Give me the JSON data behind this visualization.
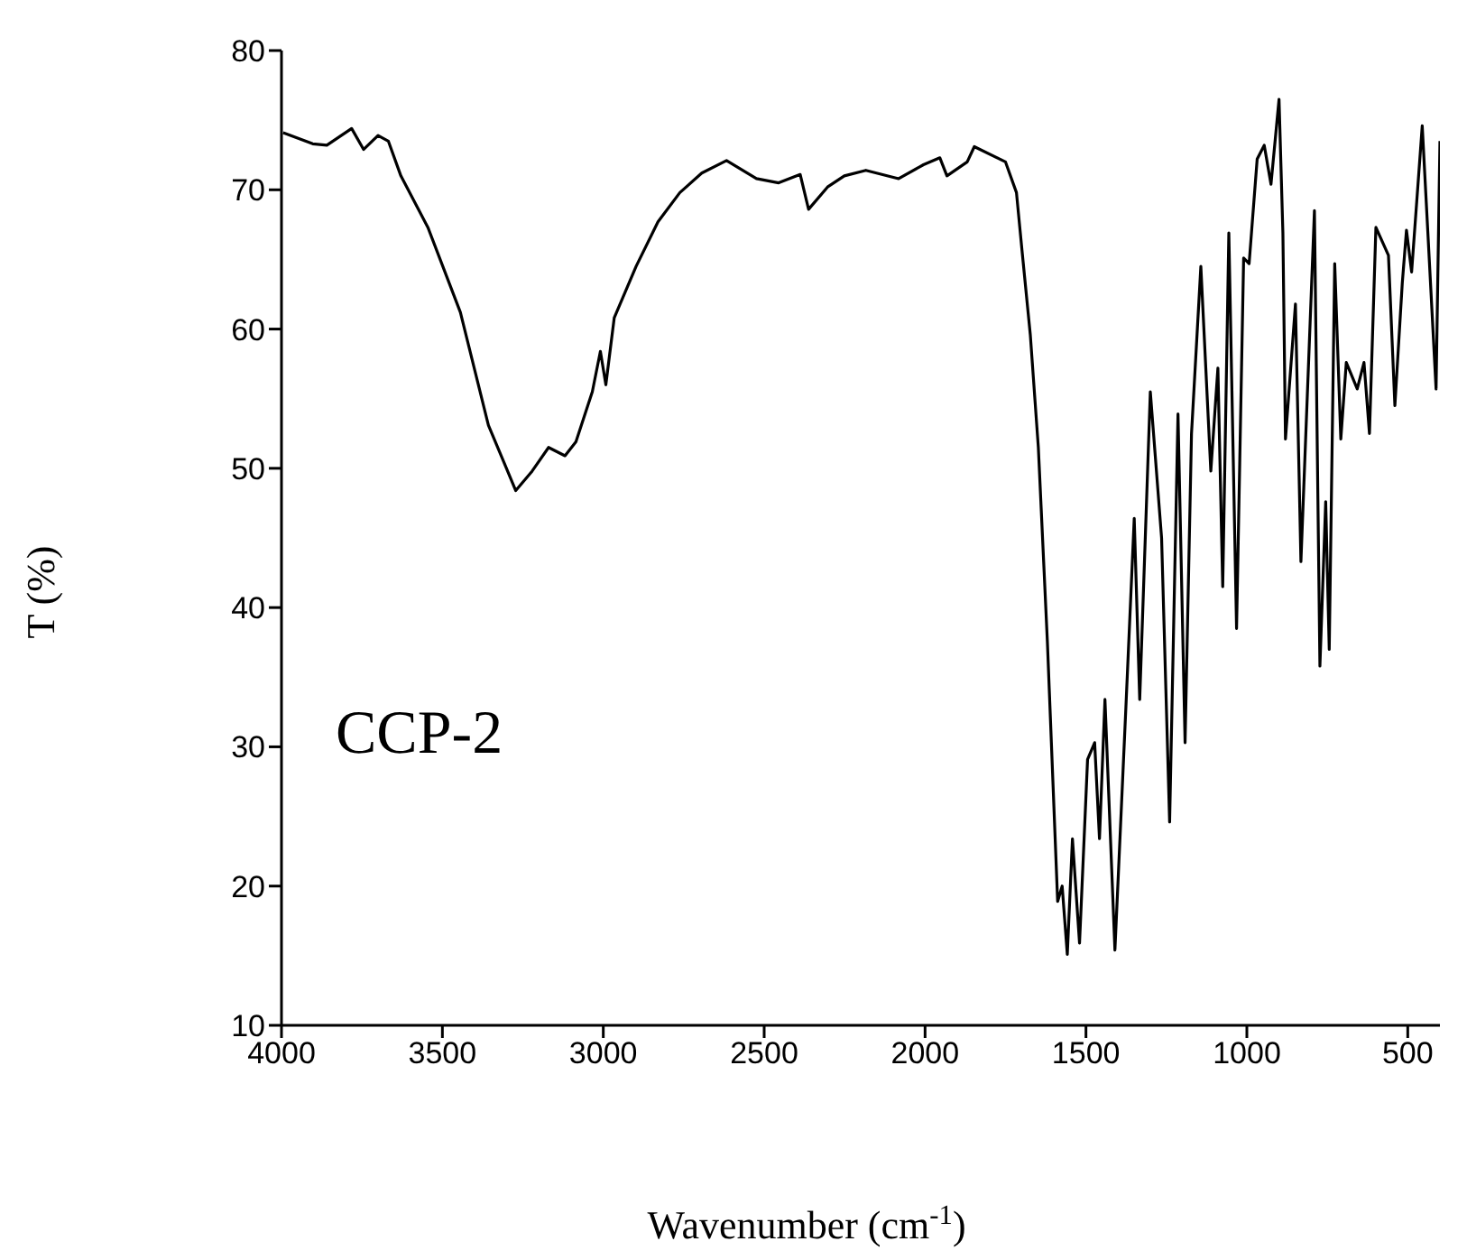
{
  "chart_data": {
    "type": "line",
    "xlabel": "Wavenumber (cm$^{-1}$)",
    "ylabel": "T (%)",
    "annotations": [
      "CCP-2"
    ],
    "xlim": [
      4000,
      400
    ],
    "xticks": [
      4000,
      3500,
      3000,
      2500,
      2000,
      1500,
      1000,
      500
    ],
    "ylim": [
      10,
      80
    ],
    "yticks": [
      10,
      20,
      30,
      40,
      50,
      60,
      70,
      80
    ],
    "marker": "none",
    "line_style": "solid",
    "series": [
      {
        "color": "#000000",
        "x": [
          3995,
          3903,
          3859,
          3782,
          3745,
          3700,
          3668,
          3629,
          3545,
          3444,
          3357,
          3272,
          3221,
          3170,
          3119,
          3085,
          3034,
          3009,
          2992,
          2966,
          2898,
          2830,
          2762,
          2694,
          2617,
          2524,
          2455,
          2388,
          2362,
          2303,
          2251,
          2184,
          2082,
          2005,
          1954,
          1932,
          1869,
          1847,
          1750,
          1716,
          1699,
          1673,
          1648,
          1620,
          1588,
          1574,
          1558,
          1542,
          1520,
          1495,
          1473,
          1458,
          1441,
          1410,
          1376,
          1350,
          1333,
          1300,
          1265,
          1240,
          1214,
          1192,
          1172,
          1143,
          1112,
          1090,
          1075,
          1056,
          1032,
          1010,
          993,
          968,
          946,
          925,
          900,
          888,
          880,
          849,
          832,
          790,
          773,
          755,
          744,
          727,
          708,
          691,
          657,
          636,
          619,
          599,
          560,
          540,
          517,
          504,
          488,
          455,
          412,
          400
        ],
        "values": [
          74.1,
          73.3,
          73.2,
          74.4,
          72.9,
          73.9,
          73.5,
          71.0,
          67.3,
          61.2,
          53.1,
          48.4,
          49.8,
          51.5,
          50.9,
          51.9,
          55.5,
          58.4,
          56.0,
          60.8,
          64.5,
          67.7,
          69.8,
          71.2,
          72.1,
          70.8,
          70.5,
          71.1,
          68.6,
          70.2,
          71.0,
          71.4,
          70.8,
          71.8,
          72.3,
          71.0,
          72.0,
          73.1,
          72.0,
          69.8,
          65.7,
          59.6,
          51.5,
          37.6,
          18.9,
          20.0,
          15.1,
          23.4,
          15.9,
          29.1,
          30.3,
          23.4,
          33.4,
          15.4,
          32.8,
          46.4,
          33.4,
          55.5,
          45.0,
          24.6,
          53.9,
          30.3,
          52.5,
          64.5,
          49.8,
          57.2,
          41.5,
          66.9,
          38.5,
          65.1,
          64.7,
          72.2,
          73.2,
          70.4,
          76.5,
          66.9,
          52.1,
          61.8,
          43.3,
          68.5,
          35.8,
          47.6,
          37.0,
          64.7,
          52.1,
          57.6,
          55.7,
          57.6,
          52.5,
          67.3,
          65.3,
          54.5,
          63.3,
          67.1,
          64.1,
          74.6,
          55.7,
          73.5
        ]
      }
    ]
  }
}
